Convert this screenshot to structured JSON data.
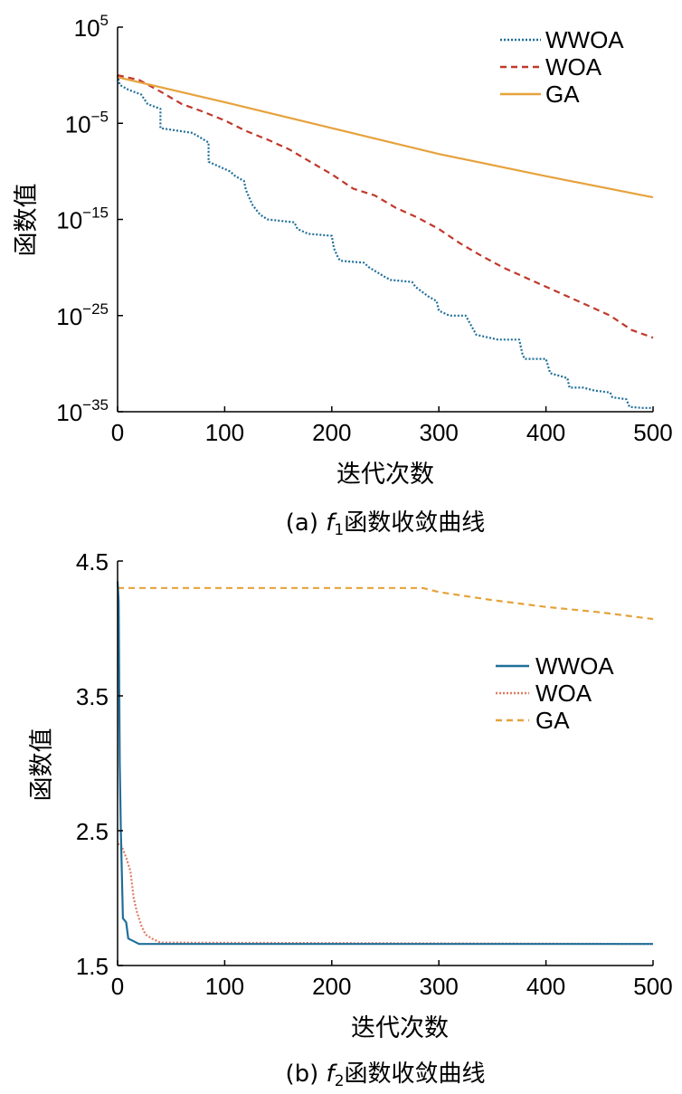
{
  "chart_data": [
    {
      "type": "line",
      "caption_prefix": "(a) ",
      "caption_var": "f",
      "caption_sub": "1",
      "caption_rest": "函数收敛曲线",
      "xlabel": "迭代次数",
      "ylabel": "函数值",
      "yscale": "log",
      "xlim": [
        0,
        500
      ],
      "ylim_exp": [
        -35,
        5
      ],
      "x_ticks": [
        0,
        100,
        200,
        300,
        400,
        500
      ],
      "y_tick_exps": [
        5,
        -5,
        -15,
        -25,
        -35
      ],
      "y_tick_base": "10",
      "y_tick_labels": [
        "5",
        "−5",
        "−15",
        "−25",
        "−35"
      ],
      "legend": [
        "WWOA",
        "WOA",
        "GA"
      ],
      "legend_position": "top-right",
      "grid": false,
      "series": [
        {
          "name": "WWOA",
          "color": "#1f6f9a",
          "dash": "dotted",
          "log10_points": [
            [
              0,
              0
            ],
            [
              2,
              -1
            ],
            [
              10,
              -1.5
            ],
            [
              22,
              -2
            ],
            [
              28,
              -3
            ],
            [
              40,
              -3.5
            ],
            [
              40,
              -5.5
            ],
            [
              70,
              -6
            ],
            [
              85,
              -7
            ],
            [
              85,
              -9
            ],
            [
              105,
              -10
            ],
            [
              110,
              -10.5
            ],
            [
              118,
              -11
            ],
            [
              120,
              -12
            ],
            [
              126,
              -13.5
            ],
            [
              133,
              -14.5
            ],
            [
              140,
              -15
            ],
            [
              165,
              -15.3
            ],
            [
              168,
              -16
            ],
            [
              178,
              -16.5
            ],
            [
              200,
              -16.7
            ],
            [
              202,
              -18
            ],
            [
              206,
              -19
            ],
            [
              208,
              -19.3
            ],
            [
              230,
              -19.5
            ],
            [
              235,
              -20
            ],
            [
              250,
              -21
            ],
            [
              255,
              -21.3
            ],
            [
              275,
              -21.5
            ],
            [
              278,
              -22
            ],
            [
              290,
              -23
            ],
            [
              298,
              -23.5
            ],
            [
              300,
              -24.5
            ],
            [
              310,
              -25
            ],
            [
              325,
              -25
            ],
            [
              330,
              -26
            ],
            [
              335,
              -27
            ],
            [
              355,
              -27.5
            ],
            [
              375,
              -27.5
            ],
            [
              378,
              -29
            ],
            [
              380,
              -29.5
            ],
            [
              400,
              -29.5
            ],
            [
              404,
              -31
            ],
            [
              420,
              -31.5
            ],
            [
              422,
              -32.5
            ],
            [
              435,
              -32.5
            ],
            [
              445,
              -32.8
            ],
            [
              460,
              -33
            ],
            [
              462,
              -33.5
            ],
            [
              475,
              -33.7
            ],
            [
              478,
              -34.5
            ],
            [
              490,
              -34.6
            ],
            [
              500,
              -34.6
            ]
          ]
        },
        {
          "name": "WOA",
          "color": "#c0392b",
          "dash": "dashed",
          "log10_points": [
            [
              0,
              0
            ],
            [
              20,
              -0.5
            ],
            [
              40,
              -1.7
            ],
            [
              60,
              -3
            ],
            [
              80,
              -3.8
            ],
            [
              100,
              -4.7
            ],
            [
              120,
              -5.8
            ],
            [
              140,
              -6.7
            ],
            [
              160,
              -7.7
            ],
            [
              180,
              -9
            ],
            [
              200,
              -10.3
            ],
            [
              220,
              -11.8
            ],
            [
              240,
              -12.5
            ],
            [
              260,
              -13.8
            ],
            [
              280,
              -14.8
            ],
            [
              300,
              -16
            ],
            [
              320,
              -17.5
            ],
            [
              340,
              -18.8
            ],
            [
              360,
              -20
            ],
            [
              380,
              -21
            ],
            [
              400,
              -22
            ],
            [
              420,
              -23
            ],
            [
              440,
              -24
            ],
            [
              460,
              -25
            ],
            [
              480,
              -26.5
            ],
            [
              500,
              -27.3
            ]
          ]
        },
        {
          "name": "GA",
          "color": "#e6a23c",
          "dash": "solid",
          "log10_points": [
            [
              0,
              -0.2
            ],
            [
              100,
              -2.8
            ],
            [
              200,
              -5.5
            ],
            [
              300,
              -8.2
            ],
            [
              400,
              -10.5
            ],
            [
              500,
              -12.7
            ]
          ]
        }
      ]
    },
    {
      "type": "line",
      "caption_prefix": "(b) ",
      "caption_var": "f",
      "caption_sub": "2",
      "caption_rest": "函数收敛曲线",
      "xlabel": "迭代次数",
      "ylabel": "函数值",
      "xlim": [
        0,
        500
      ],
      "ylim": [
        1.5,
        4.5
      ],
      "x_ticks": [
        0,
        100,
        200,
        300,
        400,
        500
      ],
      "y_ticks": [
        "1.5",
        "2.5",
        "3.5",
        "4.5"
      ],
      "legend": [
        "WWOA",
        "WOA",
        "GA"
      ],
      "legend_position": "right",
      "grid": false,
      "series": [
        {
          "name": "WWOA",
          "color": "#1f6f9a",
          "dash": "solid",
          "points": [
            [
              0,
              4.35
            ],
            [
              1,
              4.2
            ],
            [
              2,
              3.0
            ],
            [
              3,
              2.5
            ],
            [
              5,
              1.85
            ],
            [
              8,
              1.82
            ],
            [
              10,
              1.7
            ],
            [
              15,
              1.68
            ],
            [
              20,
              1.66
            ],
            [
              500,
              1.66
            ]
          ]
        },
        {
          "name": "WOA",
          "color": "#e07b62",
          "dash": "dotted",
          "points": [
            [
              0,
              2.4
            ],
            [
              3,
              2.4
            ],
            [
              8,
              2.3
            ],
            [
              12,
              2.2
            ],
            [
              15,
              2.0
            ],
            [
              18,
              1.9
            ],
            [
              22,
              1.8
            ],
            [
              26,
              1.73
            ],
            [
              32,
              1.7
            ],
            [
              40,
              1.67
            ],
            [
              500,
              1.66
            ]
          ]
        },
        {
          "name": "GA",
          "color": "#e6a23c",
          "dash": "dashed",
          "points": [
            [
              0,
              4.3
            ],
            [
              285,
              4.3
            ],
            [
              300,
              4.27
            ],
            [
              350,
              4.21
            ],
            [
              400,
              4.16
            ],
            [
              450,
              4.12
            ],
            [
              500,
              4.07
            ]
          ]
        }
      ]
    }
  ]
}
